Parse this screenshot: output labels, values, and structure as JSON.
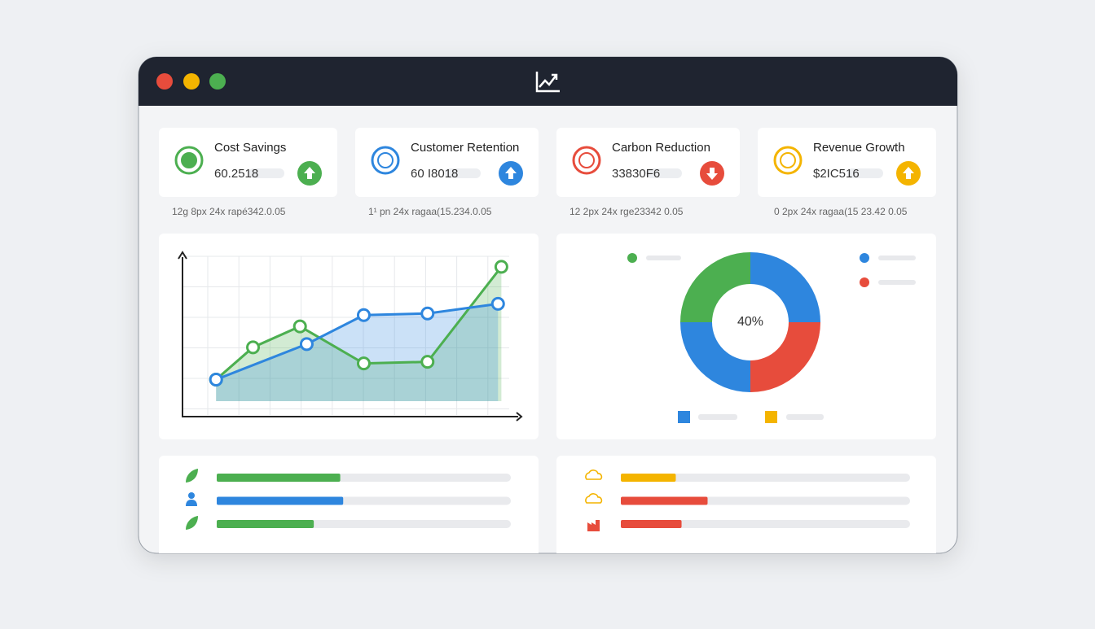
{
  "kpis": [
    {
      "title": "Cost Savings",
      "value": "60.2518",
      "caption": "12g 8px 24x rapé342.0.05"
    },
    {
      "title": "Customer Retention",
      "value": "60 I8018",
      "caption": "1¹ pn 24x ragaa(15.234.0.05"
    },
    {
      "title": "Carbon Reduction",
      "value": "33830F6",
      "caption": "12 2px 24x rge23342 0.05"
    },
    {
      "title": "Revenue Growth",
      "value": "$2IC516",
      "caption": "0 2px 24x ragaa(15 23.42 0.05"
    }
  ],
  "chart_data": [
    {
      "type": "line",
      "xlim": [
        0,
        10
      ],
      "ylim": [
        0,
        10
      ],
      "grid": true,
      "series": [
        {
          "color": "#4caf50",
          "x": [
            1,
            2.1,
            3.5,
            5.4,
            7.3,
            9.5
          ],
          "values": [
            2.2,
            4.2,
            5.5,
            3.2,
            3.3,
            9.2
          ]
        },
        {
          "color": "#2e86de",
          "x": [
            1,
            3.7,
            5.4,
            7.3,
            9.4
          ],
          "values": [
            2.2,
            4.4,
            6.2,
            6.3,
            6.9
          ]
        }
      ]
    },
    {
      "type": "pie",
      "annotation": "40%",
      "values": [
        25,
        25,
        25,
        25
      ],
      "colors": [
        "#2e86de",
        "#e74c3c",
        "#2e86de",
        "#4caf50"
      ]
    },
    {
      "type": "hbar",
      "xlim": [
        0,
        100
      ],
      "categories": [
        null,
        null,
        null
      ],
      "values": [
        42,
        43,
        33
      ],
      "colors": [
        "#4caf50",
        "#2e86de",
        "#4caf50"
      ]
    },
    {
      "type": "hbar",
      "xlim": [
        0,
        100
      ],
      "categories": [
        null,
        null,
        null
      ],
      "values": [
        19,
        30,
        21
      ],
      "colors": [
        "#f4b400",
        "#e74c3c",
        "#e74c3c"
      ]
    }
  ]
}
